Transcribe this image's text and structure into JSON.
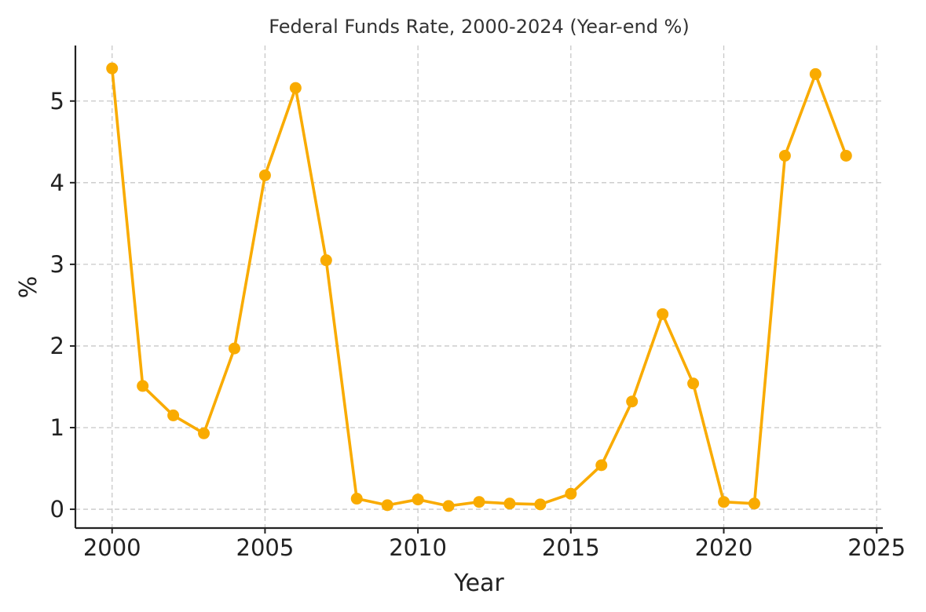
{
  "chart_data": {
    "type": "line",
    "title": "Federal Funds Rate, 2000-2024 (Year-end %)",
    "xlabel": "Year",
    "ylabel": "%",
    "xlim": [
      1998.8,
      2025.2
    ],
    "ylim": [
      -0.23,
      5.68
    ],
    "x_ticks": [
      2000,
      2005,
      2010,
      2015,
      2020,
      2025
    ],
    "y_ticks": [
      0,
      1,
      2,
      3,
      4,
      5
    ],
    "grid": true,
    "legend": "none",
    "color": "#f9ab00",
    "series": [
      {
        "x": [
          2000,
          2001,
          2002,
          2003,
          2004,
          2005,
          2006,
          2007,
          2008,
          2009,
          2010,
          2011,
          2012,
          2013,
          2014,
          2015,
          2016,
          2017,
          2018,
          2019,
          2020,
          2021,
          2022,
          2023,
          2024
        ],
        "values": [
          5.4,
          1.51,
          1.15,
          0.93,
          1.97,
          4.09,
          5.16,
          3.05,
          0.13,
          0.05,
          0.12,
          0.04,
          0.09,
          0.07,
          0.06,
          0.19,
          0.54,
          1.32,
          2.39,
          1.54,
          0.09,
          0.07,
          4.33,
          5.33,
          4.33
        ]
      }
    ]
  }
}
